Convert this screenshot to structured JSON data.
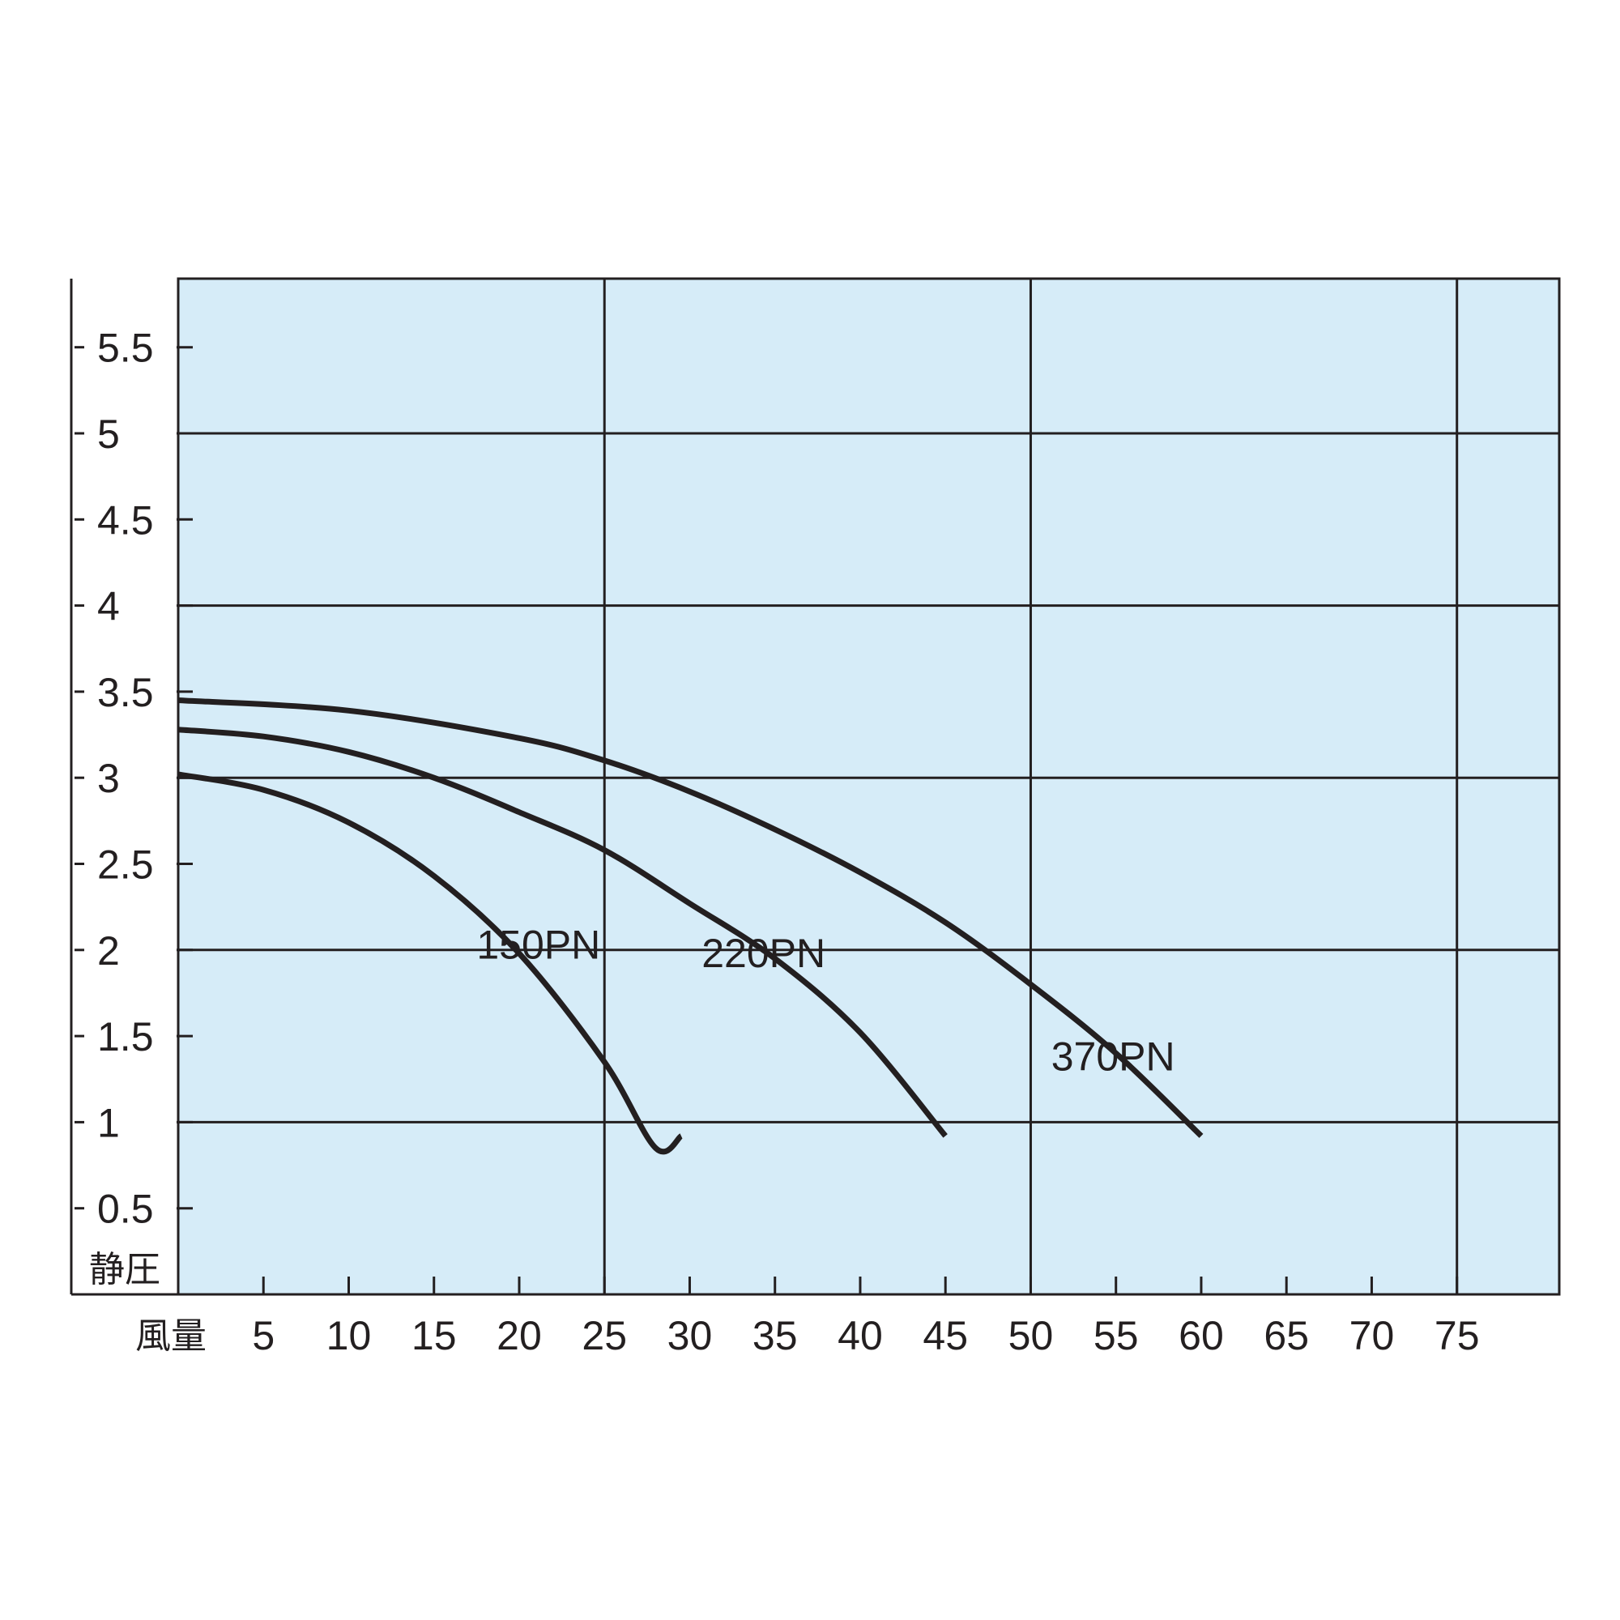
{
  "chart_data": {
    "type": "line",
    "title": "",
    "xlabel": "風量",
    "ylabel": "静圧",
    "xlim": [
      0,
      81
    ],
    "ylim": [
      0,
      5.9
    ],
    "x_ticks": [
      5,
      10,
      15,
      20,
      25,
      30,
      35,
      40,
      45,
      50,
      55,
      60,
      65,
      70,
      75
    ],
    "x_tick_labels": [
      "5",
      "10",
      "15",
      "20",
      "25",
      "30",
      "35",
      "40",
      "45",
      "50",
      "55",
      "60",
      "65",
      "70",
      "75"
    ],
    "y_ticks": [
      0.5,
      1,
      1.5,
      2,
      2.5,
      3,
      3.5,
      4,
      4.5,
      5,
      5.5
    ],
    "y_tick_labels": [
      "0.5",
      "1",
      "1.5",
      "2",
      "2.5",
      "3",
      "3.5",
      "4",
      "4.5",
      "5",
      "5.5"
    ],
    "x_gridlines": [
      25,
      50,
      75
    ],
    "y_gridlines": [
      1,
      2,
      3,
      4,
      5
    ],
    "grid": true,
    "colors": {
      "plot_background": "#d6ecf8",
      "ink": "#231f20"
    },
    "series": [
      {
        "name": "150PN",
        "x": [
          0,
          5,
          10,
          15,
          20,
          25,
          28,
          29.5
        ],
        "y": [
          3.02,
          2.93,
          2.74,
          2.43,
          1.98,
          1.35,
          0.85,
          0.92
        ]
      },
      {
        "name": "220PN",
        "x": [
          0,
          5,
          10,
          15,
          20,
          25,
          30,
          35,
          40,
          45
        ],
        "y": [
          3.28,
          3.24,
          3.15,
          3.0,
          2.8,
          2.58,
          2.27,
          1.95,
          1.52,
          0.92
        ]
      },
      {
        "name": "370PN",
        "x": [
          0,
          10,
          20,
          25,
          30,
          35,
          40,
          45,
          50,
          55,
          60
        ],
        "y": [
          3.45,
          3.39,
          3.23,
          3.1,
          2.92,
          2.7,
          2.45,
          2.16,
          1.8,
          1.4,
          0.92
        ]
      }
    ],
    "labels": [
      {
        "text": "150PN",
        "x": 17.5,
        "y": 1.95
      },
      {
        "text": "220PN",
        "x": 30.7,
        "y": 1.9
      },
      {
        "text": "370PN",
        "x": 51.2,
        "y": 1.3
      }
    ]
  }
}
